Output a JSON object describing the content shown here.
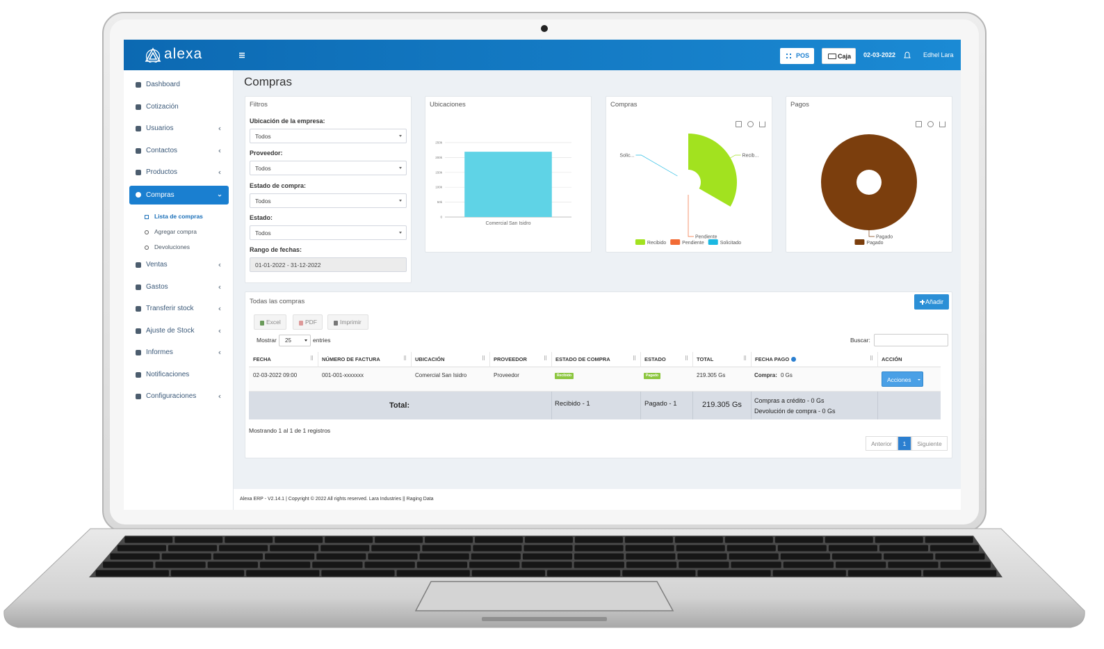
{
  "header": {
    "brand": "alexa",
    "pos": "POS",
    "caja": "Caja",
    "date": "02-03-2022",
    "user": "Edhel Lara"
  },
  "sidebar": {
    "items": [
      {
        "label": "Dashboard",
        "expandable": false
      },
      {
        "label": "Cotización",
        "expandable": false
      },
      {
        "label": "Usuarios",
        "expandable": true
      },
      {
        "label": "Contactos",
        "expandable": true
      },
      {
        "label": "Productos",
        "expandable": true
      },
      {
        "label": "Compras",
        "expandable": true,
        "active": true,
        "submenu": [
          "Lista de compras",
          "Agregar compra",
          "Devoluciones"
        ]
      },
      {
        "label": "Ventas",
        "expandable": true
      },
      {
        "label": "Gastos",
        "expandable": true
      },
      {
        "label": "Transferir stock",
        "expandable": true
      },
      {
        "label": "Ajuste de Stock",
        "expandable": true
      },
      {
        "label": "Informes",
        "expandable": true
      },
      {
        "label": "Notificaciones",
        "expandable": false
      },
      {
        "label": "Configuraciones",
        "expandable": true
      }
    ]
  },
  "page_title": "Compras",
  "filters": {
    "title": "Filtros",
    "fields": [
      {
        "label": "Ubicación de la empresa:",
        "value": "Todos"
      },
      {
        "label": "Proveedor:",
        "value": "Todos"
      },
      {
        "label": "Estado de compra:",
        "value": "Todos"
      },
      {
        "label": "Estado:",
        "value": "Todos"
      },
      {
        "label": "Rango de fechas:",
        "value": "01-01-2022 - 31-12-2022"
      }
    ]
  },
  "ubicaciones_chart": {
    "type": "bar",
    "title": "Ubicaciones",
    "categories": [
      "Comercial San Isidro"
    ],
    "values": [
      219305
    ],
    "color": "#5fd3e6",
    "ylim": [
      0,
      250000
    ],
    "grid": true,
    "yticks": [
      0,
      {
        "value": 50000,
        "label": "50k"
      },
      {
        "value": 100000,
        "label": "100k"
      },
      {
        "value": 150000,
        "label": "150k"
      },
      {
        "value": 200000,
        "label": "200k"
      },
      {
        "value": 250000,
        "label": "250k"
      }
    ]
  },
  "compras_chart": {
    "type": "rose",
    "title": "Compras",
    "categories": [
      "Recibido",
      "Pendiente",
      "Solicitado"
    ],
    "labels": [
      "Recib...",
      "Pendiente",
      "Solic..."
    ],
    "values": [
      1,
      0,
      0
    ],
    "colors": [
      "#a2e21f",
      "#f26b35",
      "#1ab8e2"
    ]
  },
  "pagos_chart": {
    "type": "donut",
    "title": "Pagos",
    "categories": [
      "Pagado"
    ],
    "labels": [
      "Pagado"
    ],
    "values": [
      1
    ],
    "colors": [
      "#7b3e0d"
    ]
  },
  "purchases": {
    "title": "Todas las compras",
    "add_button": "Añadir",
    "export_buttons": [
      "Excel",
      "PDF",
      "Imprimir"
    ],
    "show_label": "Mostrar",
    "page_size": "25",
    "entries_label": "entries",
    "search_label": "Buscar:",
    "columns": [
      "FECHA",
      "NÚMERO DE FACTURA",
      "UBICACIÓN",
      "PROVEEDOR",
      "ESTADO DE COMPRA",
      "ESTADO",
      "TOTAL",
      "FECHA PAGO",
      "ACCIÓN"
    ],
    "rows": [
      [
        "02-03-2022 09:00",
        "001-001-xxxxxxx",
        "Comercial San Isidro",
        "Proveedor",
        "Recibido",
        "Pagado",
        "219.305 Gs",
        {
          "label": "Compra:",
          "value": "0 Gs"
        },
        "Acciones"
      ]
    ],
    "totals": {
      "label": "Total:",
      "estado_compra": "Recibido - 1",
      "estado": "Pagado - 1",
      "total": "219.305 Gs",
      "compras_credito": "Compras a crédito - 0 Gs",
      "devolucion": "Devolución de compra - 0 Gs"
    },
    "info": "Mostrando 1 al 1 de 1 registros",
    "pagination": [
      "Anterior",
      "1",
      "Siguiente"
    ]
  },
  "footer": "Alexa ERP - V2.14.1 | Copyright © 2022 All rights reserved. Lara Industries || Raging Data"
}
